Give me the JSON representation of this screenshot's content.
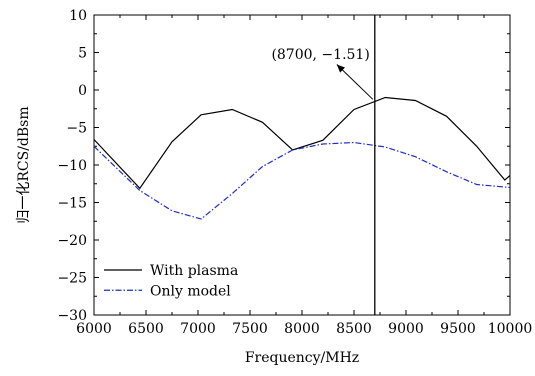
{
  "chart_data": {
    "type": "line",
    "title": "",
    "xlabel": "Frequency/MHz",
    "ylabel": "归一化RCS/dBsm",
    "xlim": [
      6000,
      10000
    ],
    "ylim": [
      -30,
      10
    ],
    "xticks": [
      6000,
      6500,
      7000,
      7500,
      8000,
      8500,
      9000,
      9500,
      10000
    ],
    "yticks": [
      10,
      5,
      0,
      -5,
      -10,
      -15,
      -20,
      -25,
      -30
    ],
    "grid": false,
    "legend_position": "bottom-left",
    "series": [
      {
        "name": "With plasma",
        "color": "#000000",
        "style": "solid",
        "x": [
          6000,
          6440,
          6750,
          7030,
          7330,
          7620,
          7910,
          8200,
          8500,
          8800,
          9090,
          9390,
          9680,
          9950,
          10000
        ],
        "y": [
          -6.6,
          -13.1,
          -6.9,
          -3.3,
          -2.6,
          -4.3,
          -8.0,
          -6.7,
          -2.6,
          -1.0,
          -1.4,
          -3.5,
          -7.5,
          -12.0,
          -11.4
        ]
      },
      {
        "name": "Only model",
        "color": "#1f2ec8",
        "style": "dashdot",
        "x": [
          6000,
          6440,
          6750,
          7030,
          7330,
          7620,
          7910,
          8200,
          8500,
          8800,
          9090,
          9390,
          9680,
          10000
        ],
        "y": [
          -7.5,
          -13.4,
          -16.1,
          -17.2,
          -13.8,
          -10.2,
          -8.0,
          -7.2,
          -7.0,
          -7.6,
          -8.9,
          -10.9,
          -12.6,
          -13.0
        ]
      }
    ],
    "vline": {
      "x": 8700
    },
    "annotation": {
      "text": "(8700, −1.51)",
      "x": 8700,
      "y": -1.51
    }
  }
}
